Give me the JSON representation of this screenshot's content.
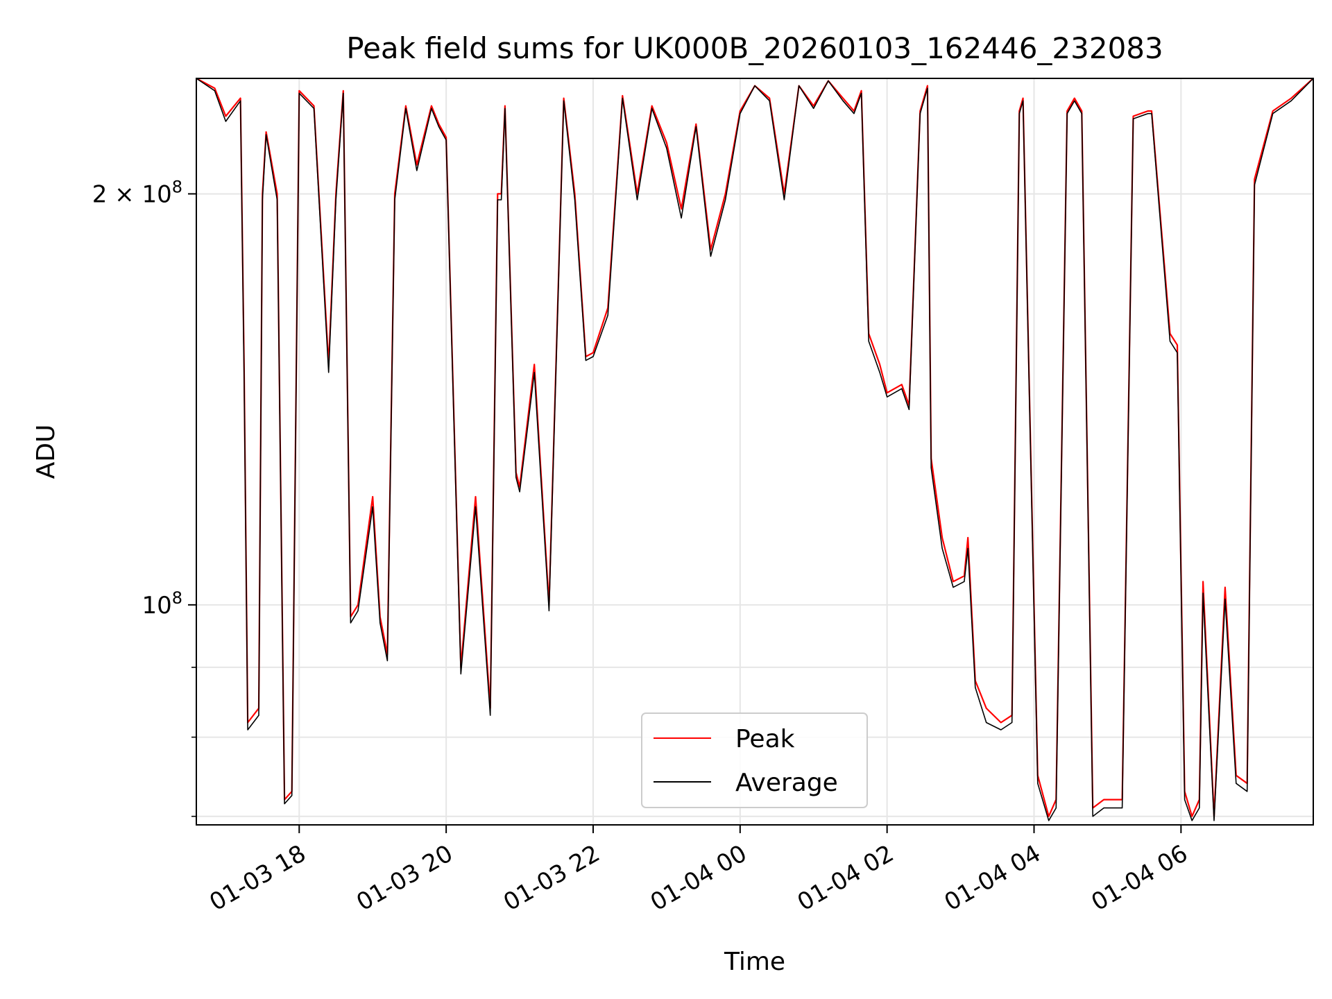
{
  "chart_data": {
    "type": "line",
    "title": "Peak field sums for UK000B_20260103_162446_232083",
    "xlabel": "Time",
    "ylabel": "ADU",
    "yscale": "log",
    "xlim_hours": [
      16.6,
      31.8
    ],
    "ylim": [
      69000000,
      243000000
    ],
    "grid": true,
    "legend_position": "lower center",
    "x_ticks": [
      {
        "hours": 18,
        "label": "01-03 18"
      },
      {
        "hours": 20,
        "label": "01-03 20"
      },
      {
        "hours": 22,
        "label": "01-03 22"
      },
      {
        "hours": 24,
        "label": "01-04 00"
      },
      {
        "hours": 26,
        "label": "01-04 02"
      },
      {
        "hours": 28,
        "label": "01-04 04"
      },
      {
        "hours": 30,
        "label": "01-04 06"
      }
    ],
    "y_major_ticks": [
      {
        "value": 100000000,
        "base": "10",
        "exp": "8",
        "coef": ""
      },
      {
        "value": 200000000,
        "base": "10",
        "exp": "8",
        "coef": "2"
      }
    ],
    "y_minor_ticks": [
      70000000,
      80000000,
      90000000
    ],
    "series": [
      {
        "name": "Peak",
        "color": "#ff0000",
        "x_hours": [
          16.6,
          16.85,
          17.0,
          17.2,
          17.25,
          17.3,
          17.45,
          17.5,
          17.55,
          17.7,
          17.8,
          17.9,
          18.0,
          18.2,
          18.4,
          18.5,
          18.6,
          18.7,
          18.8,
          19.0,
          19.1,
          19.2,
          19.3,
          19.45,
          19.6,
          19.8,
          19.9,
          20.0,
          20.2,
          20.4,
          20.6,
          20.7,
          20.75,
          20.8,
          20.95,
          21.0,
          21.2,
          21.4,
          21.6,
          21.75,
          21.9,
          22.0,
          22.2,
          22.4,
          22.6,
          22.8,
          23.0,
          23.2,
          23.4,
          23.6,
          23.8,
          24.0,
          24.2,
          24.4,
          24.6,
          24.8,
          25.0,
          25.2,
          25.4,
          25.55,
          25.65,
          25.75,
          25.9,
          26.0,
          26.2,
          26.3,
          26.45,
          26.55,
          26.6,
          26.75,
          26.9,
          27.05,
          27.1,
          27.2,
          27.35,
          27.55,
          27.7,
          27.8,
          27.85,
          28.05,
          28.2,
          28.3,
          28.45,
          28.55,
          28.65,
          28.8,
          28.95,
          29.2,
          29.35,
          29.55,
          29.6,
          29.85,
          29.95,
          30.05,
          30.15,
          30.25,
          30.3,
          30.45,
          30.6,
          30.75,
          30.9,
          31.0,
          31.25,
          31.5,
          31.8
        ],
        "values": [
          243000000,
          239000000,
          228000000,
          235000000,
          150000000,
          82000000,
          84000000,
          200000000,
          222000000,
          200000000,
          72000000,
          73000000,
          238000000,
          232000000,
          150000000,
          200000000,
          238000000,
          98000000,
          100000000,
          120000000,
          98000000,
          92000000,
          200000000,
          232000000,
          210000000,
          232000000,
          225000000,
          220000000,
          90000000,
          120000000,
          84000000,
          200000000,
          200000000,
          232000000,
          125000000,
          122000000,
          150000000,
          100000000,
          235000000,
          200000000,
          152000000,
          153000000,
          165000000,
          236000000,
          200000000,
          232000000,
          218000000,
          195000000,
          225000000,
          182000000,
          200000000,
          230000000,
          240000000,
          235000000,
          200000000,
          240000000,
          232000000,
          242000000,
          235000000,
          230000000,
          238000000,
          158000000,
          150000000,
          143000000,
          145000000,
          140000000,
          230000000,
          240000000,
          128000000,
          112000000,
          104000000,
          105000000,
          112000000,
          88000000,
          84000000,
          82000000,
          83000000,
          230000000,
          235000000,
          75000000,
          70000000,
          72000000,
          230000000,
          235000000,
          230000000,
          71000000,
          72000000,
          72000000,
          228000000,
          230000000,
          230000000,
          158000000,
          155000000,
          73000000,
          70000000,
          72000000,
          104000000,
          70000000,
          103000000,
          75000000,
          74000000,
          205000000,
          230000000,
          235000000,
          243000000
        ]
      },
      {
        "name": "Average",
        "color": "#000000",
        "x_hours": [
          16.6,
          16.85,
          17.0,
          17.2,
          17.25,
          17.3,
          17.45,
          17.5,
          17.55,
          17.7,
          17.8,
          17.9,
          18.0,
          18.2,
          18.4,
          18.5,
          18.6,
          18.7,
          18.8,
          19.0,
          19.1,
          19.2,
          19.3,
          19.45,
          19.6,
          19.8,
          19.9,
          20.0,
          20.2,
          20.4,
          20.6,
          20.7,
          20.75,
          20.8,
          20.95,
          21.0,
          21.2,
          21.4,
          21.6,
          21.75,
          21.9,
          22.0,
          22.2,
          22.4,
          22.6,
          22.8,
          23.0,
          23.2,
          23.4,
          23.6,
          23.8,
          24.0,
          24.2,
          24.4,
          24.6,
          24.8,
          25.0,
          25.2,
          25.4,
          25.55,
          25.65,
          25.75,
          25.9,
          26.0,
          26.2,
          26.3,
          26.45,
          26.55,
          26.6,
          26.75,
          26.9,
          27.05,
          27.1,
          27.2,
          27.35,
          27.55,
          27.7,
          27.8,
          27.85,
          28.05,
          28.2,
          28.3,
          28.45,
          28.55,
          28.65,
          28.8,
          28.95,
          29.2,
          29.35,
          29.55,
          29.6,
          29.85,
          29.95,
          30.05,
          30.15,
          30.25,
          30.3,
          30.45,
          30.6,
          30.75,
          30.9,
          31.0,
          31.25,
          31.5,
          31.8
        ],
        "values": [
          243000000,
          238000000,
          226000000,
          234000000,
          148000000,
          81000000,
          83000000,
          198000000,
          221000000,
          198000000,
          71500000,
          72500000,
          237000000,
          231000000,
          148000000,
          198000000,
          237000000,
          97000000,
          99000000,
          118000000,
          97000000,
          91000000,
          198000000,
          231000000,
          208000000,
          231000000,
          224000000,
          219000000,
          89000000,
          118000000,
          83000000,
          198000000,
          198000000,
          231000000,
          124000000,
          121000000,
          148000000,
          99000000,
          234000000,
          198000000,
          151000000,
          152000000,
          163000000,
          235000000,
          198000000,
          231000000,
          216000000,
          192000000,
          224000000,
          180000000,
          198000000,
          229000000,
          240000000,
          234000000,
          198000000,
          240000000,
          231000000,
          242000000,
          234000000,
          229000000,
          237000000,
          156000000,
          148000000,
          142000000,
          144000000,
          139000000,
          229000000,
          239000000,
          126000000,
          110000000,
          103000000,
          104000000,
          110000000,
          87000000,
          82000000,
          81000000,
          82000000,
          229000000,
          234000000,
          74000000,
          69500000,
          71000000,
          229000000,
          234000000,
          229000000,
          70000000,
          71000000,
          71000000,
          227000000,
          229000000,
          229000000,
          156000000,
          153000000,
          72000000,
          69500000,
          71000000,
          102000000,
          69500000,
          101000000,
          74000000,
          73000000,
          203000000,
          229000000,
          234000000,
          243000000
        ]
      }
    ]
  }
}
